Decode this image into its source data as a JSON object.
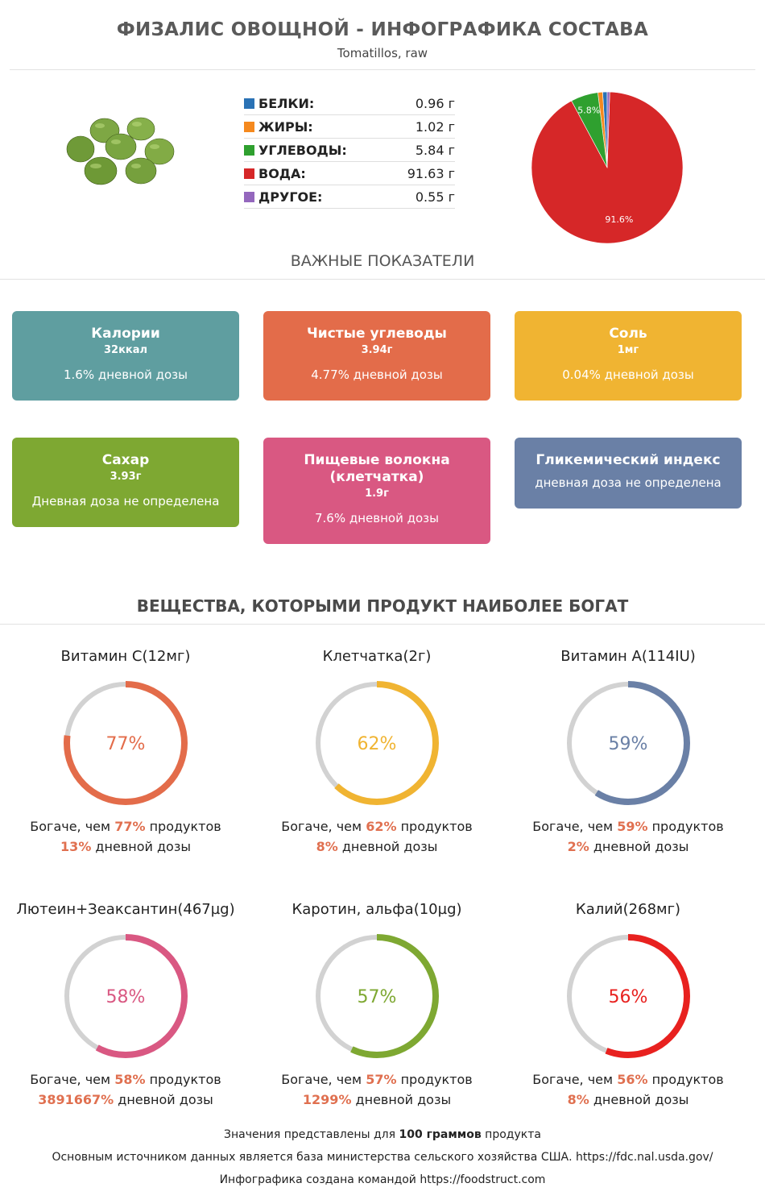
{
  "header": {
    "title": "ФИЗАЛИС ОВОЩНОЙ - ИНФОГРАФИКА СОСТАВА",
    "subtitle": "Tomatillos, raw"
  },
  "macros": [
    {
      "name": "БЕЛКИ:",
      "value": "0.96 г",
      "color": "#2a72b5"
    },
    {
      "name": "ЖИРЫ:",
      "value": "1.02 г",
      "color": "#f5891e"
    },
    {
      "name": "УГЛЕВОДЫ:",
      "value": "5.84 г",
      "color": "#2fa02f"
    },
    {
      "name": "ВОДА:",
      "value": "91.63 г",
      "color": "#d62728"
    },
    {
      "name": "ДРУГОЕ:",
      "value": "0.55 г",
      "color": "#9467bd"
    }
  ],
  "chart_data": {
    "type": "pie",
    "categories": [
      "БЕЛКИ",
      "ЖИРЫ",
      "УГЛЕВОДЫ",
      "ВОДА",
      "ДРУГОЕ"
    ],
    "values": [
      0.96,
      1.02,
      5.84,
      91.63,
      0.55
    ],
    "colors": [
      "#2a72b5",
      "#f5891e",
      "#2fa02f",
      "#d62728",
      "#9467bd"
    ],
    "data_labels": [
      "",
      "",
      "5.8%",
      "91.6%",
      ""
    ]
  },
  "key_section": {
    "title": "ВАЖНЫЕ ПОКАЗАТЕЛИ"
  },
  "cards": [
    {
      "title": "Калории",
      "value": "32ккал",
      "daily": "1.6% дневной дозы",
      "color": "#5f9ea0"
    },
    {
      "title": "Чистые углеводы",
      "value": "3.94г",
      "daily": "4.77% дневной дозы",
      "color": "#e36c4a"
    },
    {
      "title": "Соль",
      "value": "1мг",
      "daily": "0.04% дневной дозы",
      "color": "#f0b432"
    },
    {
      "title": "Сахар",
      "value": "3.93г",
      "daily": "Дневная доза не определена",
      "color": "#7ea832"
    },
    {
      "title": "Пищевые волокна (клетчатка)",
      "value": "1.9г",
      "daily": "7.6% дневной дозы",
      "color": "#d95882"
    },
    {
      "title": "Гликемический индекс",
      "value": "",
      "daily": "дневная доза не определена",
      "color": "#6a80a6"
    }
  ],
  "rich_section": {
    "title": "ВЕЩЕСТВА, КОТОРЫМИ ПРОДУКТ НАИБОЛЕЕ БОГАТ"
  },
  "rich": [
    {
      "name": "Витамин C",
      "amount": "(12мг)",
      "percent": 77,
      "percent_label": "77%",
      "richer_prefix": "Богаче, чем ",
      "richer_value": "77%",
      "richer_suffix": " продуктов",
      "daily_value": "13%",
      "daily_suffix": " дневной дозы",
      "color": "#e36c4a"
    },
    {
      "name": "Клетчатка",
      "amount": "(2г)",
      "percent": 62,
      "percent_label": "62%",
      "richer_prefix": "Богаче, чем ",
      "richer_value": "62%",
      "richer_suffix": " продуктов",
      "daily_value": "8%",
      "daily_suffix": " дневной дозы",
      "color": "#f0b432"
    },
    {
      "name": "Витамин A",
      "amount": "(114IU)",
      "percent": 59,
      "percent_label": "59%",
      "richer_prefix": "Богаче, чем ",
      "richer_value": "59%",
      "richer_suffix": " продуктов",
      "daily_value": "2%",
      "daily_suffix": " дневной дозы",
      "color": "#6a80a6"
    },
    {
      "name": "Лютеин+Зеаксантин",
      "amount": "(467µg)",
      "percent": 58,
      "percent_label": "58%",
      "richer_prefix": "Богаче, чем ",
      "richer_value": "58%",
      "richer_suffix": " продуктов",
      "daily_value": "3891667%",
      "daily_suffix": " дневной дозы",
      "color": "#d95882"
    },
    {
      "name": "Каротин, альфа",
      "amount": "(10µg)",
      "percent": 57,
      "percent_label": "57%",
      "richer_prefix": "Богаче, чем ",
      "richer_value": "57%",
      "richer_suffix": " продуктов",
      "daily_value": "1299%",
      "daily_suffix": " дневной дозы",
      "color": "#7ea832"
    },
    {
      "name": "Калий",
      "amount": "(268мг)",
      "percent": 56,
      "percent_label": "56%",
      "richer_prefix": "Богаче, чем ",
      "richer_value": "56%",
      "richer_suffix": " продуктов",
      "daily_value": "8%",
      "daily_suffix": " дневной дозы",
      "color": "#e8211f"
    }
  ],
  "footer": {
    "line1_prefix": "Значения представлены для ",
    "line1_bold": "100 граммов",
    "line1_suffix": " продукта",
    "line2": "Основным источником данных является база министерства сельского хозяйства США. https://fdc.nal.usda.gov/",
    "line3": "Инфографика создана командой https://foodstruct.com"
  }
}
